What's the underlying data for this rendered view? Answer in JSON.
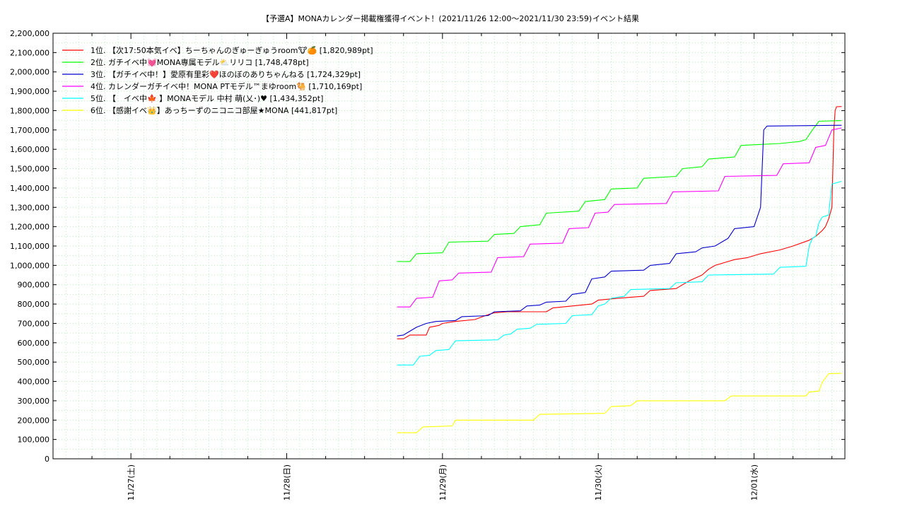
{
  "chart_data": {
    "type": "line",
    "title": "【予選A】MONAカレンダー掲載権獲得イベント！(2021/11/26 12:00〜2021/11/30 23:59)",
    "subtitle": "イベント結果",
    "xlabel": "",
    "ylabel": "",
    "ylim": [
      0,
      2200000
    ],
    "ytick_step": 100000,
    "y_ticks": [
      "0",
      "100,000",
      "200,000",
      "300,000",
      "400,000",
      "500,000",
      "600,000",
      "700,000",
      "800,000",
      "900,000",
      "1,000,000",
      "1,100,000",
      "1,200,000",
      "1,300,000",
      "1,400,000",
      "1,500,000",
      "1,600,000",
      "1,700,000",
      "1,800,000",
      "1,900,000",
      "2,000,000",
      "2,100,000",
      "2,200,000"
    ],
    "x_range_hours": [
      -12,
      110
    ],
    "x_ticks": [
      {
        "label": "11/27(土)",
        "hour": 0
      },
      {
        "label": "11/28(日)",
        "hour": 24
      },
      {
        "label": "11/29(月)",
        "hour": 48
      },
      {
        "label": "11/30(火)",
        "hour": 72
      },
      {
        "label": "12/01(水)",
        "hour": 96
      }
    ],
    "grid": true,
    "legend_position": "top-left",
    "series": [
      {
        "name": "1位. 【次17:50本気イベ】ちーちゃんのぎゅーぎゅうroom🐮🍊 [1,820,989pt]",
        "color": "#ff0000",
        "points": [
          [
            41.0,
            620000
          ],
          [
            42.0,
            620000
          ],
          [
            43.0,
            640000
          ],
          [
            45.5,
            640000
          ],
          [
            46.0,
            680000
          ],
          [
            47.5,
            690000
          ],
          [
            48.0,
            700000
          ],
          [
            50.0,
            710000
          ],
          [
            53.0,
            720000
          ],
          [
            55.0,
            745000
          ],
          [
            56.0,
            755000
          ],
          [
            58.0,
            760000
          ],
          [
            64.0,
            760000
          ],
          [
            65.0,
            780000
          ],
          [
            71.0,
            800000
          ],
          [
            72.0,
            820000
          ],
          [
            75.0,
            830000
          ],
          [
            79.0,
            840000
          ],
          [
            80.0,
            870000
          ],
          [
            84.0,
            880000
          ],
          [
            85.0,
            900000
          ],
          [
            86.0,
            920000
          ],
          [
            88.0,
            950000
          ],
          [
            89.0,
            980000
          ],
          [
            90.0,
            1000000
          ],
          [
            92.0,
            1020000
          ],
          [
            93.0,
            1030000
          ],
          [
            95.0,
            1040000
          ],
          [
            97.0,
            1060000
          ],
          [
            100.0,
            1080000
          ],
          [
            102.0,
            1100000
          ],
          [
            104.5,
            1130000
          ],
          [
            105.5,
            1150000
          ],
          [
            106.5,
            1180000
          ],
          [
            107.0,
            1200000
          ],
          [
            107.5,
            1240000
          ],
          [
            108.0,
            1300000
          ],
          [
            108.3,
            1700000
          ],
          [
            108.5,
            1800000
          ],
          [
            108.7,
            1820000
          ],
          [
            109.5,
            1820989
          ]
        ]
      },
      {
        "name": "2位. ガチイベ中💓MONA専属モデル⛅リリコ [1,748,478pt]",
        "color": "#00ff00",
        "points": [
          [
            41.0,
            1020000
          ],
          [
            43.0,
            1020000
          ],
          [
            44.0,
            1060000
          ],
          [
            48.0,
            1065000
          ],
          [
            49.0,
            1120000
          ],
          [
            55.0,
            1125000
          ],
          [
            56.0,
            1160000
          ],
          [
            59.0,
            1165000
          ],
          [
            60.0,
            1200000
          ],
          [
            63.0,
            1210000
          ],
          [
            64.0,
            1270000
          ],
          [
            69.0,
            1280000
          ],
          [
            70.0,
            1330000
          ],
          [
            73.0,
            1340000
          ],
          [
            74.0,
            1395000
          ],
          [
            78.0,
            1400000
          ],
          [
            79.0,
            1450000
          ],
          [
            84.0,
            1460000
          ],
          [
            85.0,
            1500000
          ],
          [
            88.0,
            1510000
          ],
          [
            89.0,
            1550000
          ],
          [
            93.0,
            1560000
          ],
          [
            94.0,
            1620000
          ],
          [
            97.0,
            1625000
          ],
          [
            100.0,
            1630000
          ],
          [
            103.0,
            1640000
          ],
          [
            104.0,
            1650000
          ],
          [
            105.0,
            1700000
          ],
          [
            106.0,
            1745000
          ],
          [
            109.5,
            1748478
          ]
        ]
      },
      {
        "name": "3位. 【ガチイベ中！】愛原有里彩❤️ほのぼのありちゃんねる [1,724,329pt]",
        "color": "#0000cd",
        "points": [
          [
            41.0,
            635000
          ],
          [
            42.0,
            640000
          ],
          [
            43.0,
            660000
          ],
          [
            44.0,
            680000
          ],
          [
            45.5,
            700000
          ],
          [
            47.0,
            710000
          ],
          [
            50.0,
            715000
          ],
          [
            51.0,
            735000
          ],
          [
            55.0,
            740000
          ],
          [
            56.0,
            760000
          ],
          [
            60.0,
            765000
          ],
          [
            61.0,
            790000
          ],
          [
            63.0,
            795000
          ],
          [
            64.0,
            810000
          ],
          [
            67.0,
            815000
          ],
          [
            68.0,
            850000
          ],
          [
            70.0,
            860000
          ],
          [
            71.0,
            930000
          ],
          [
            73.0,
            940000
          ],
          [
            74.0,
            970000
          ],
          [
            79.0,
            975000
          ],
          [
            80.0,
            1000000
          ],
          [
            83.0,
            1010000
          ],
          [
            84.0,
            1060000
          ],
          [
            87.0,
            1070000
          ],
          [
            88.0,
            1090000
          ],
          [
            90.0,
            1100000
          ],
          [
            91.0,
            1120000
          ],
          [
            92.0,
            1140000
          ],
          [
            93.0,
            1190000
          ],
          [
            96.0,
            1200000
          ],
          [
            97.0,
            1300000
          ],
          [
            97.5,
            1700000
          ],
          [
            98.0,
            1720000
          ],
          [
            109.5,
            1724329
          ]
        ]
      },
      {
        "name": "4位. カレンダーガチイベ中！MONA PTモデル™まゆroom🐫 [1,710,169pt]",
        "color": "#ff00ff",
        "points": [
          [
            41.0,
            785000
          ],
          [
            43.0,
            785000
          ],
          [
            44.0,
            830000
          ],
          [
            46.5,
            835000
          ],
          [
            47.5,
            920000
          ],
          [
            49.5,
            925000
          ],
          [
            50.5,
            960000
          ],
          [
            55.5,
            965000
          ],
          [
            56.5,
            1040000
          ],
          [
            60.5,
            1045000
          ],
          [
            61.5,
            1110000
          ],
          [
            66.5,
            1115000
          ],
          [
            67.5,
            1190000
          ],
          [
            70.5,
            1195000
          ],
          [
            71.5,
            1270000
          ],
          [
            73.5,
            1275000
          ],
          [
            74.5,
            1315000
          ],
          [
            82.5,
            1320000
          ],
          [
            83.5,
            1380000
          ],
          [
            90.5,
            1385000
          ],
          [
            91.5,
            1460000
          ],
          [
            99.5,
            1465000
          ],
          [
            100.5,
            1525000
          ],
          [
            104.5,
            1530000
          ],
          [
            105.5,
            1610000
          ],
          [
            107.0,
            1620000
          ],
          [
            108.0,
            1700000
          ],
          [
            109.5,
            1710169
          ]
        ]
      },
      {
        "name": "5位. 【　イベ中🍁 】MONAモデル 中村 萌(乂･)♥ [1,434,352pt]",
        "color": "#00ffff",
        "points": [
          [
            41.0,
            485000
          ],
          [
            43.5,
            485000
          ],
          [
            44.5,
            530000
          ],
          [
            46.0,
            535000
          ],
          [
            47.0,
            560000
          ],
          [
            49.0,
            565000
          ],
          [
            50.0,
            610000
          ],
          [
            56.5,
            615000
          ],
          [
            57.5,
            640000
          ],
          [
            58.5,
            645000
          ],
          [
            59.5,
            670000
          ],
          [
            61.5,
            675000
          ],
          [
            62.5,
            695000
          ],
          [
            67.0,
            700000
          ],
          [
            68.0,
            740000
          ],
          [
            71.0,
            745000
          ],
          [
            72.0,
            790000
          ],
          [
            73.0,
            800000
          ],
          [
            74.0,
            830000
          ],
          [
            76.0,
            840000
          ],
          [
            77.0,
            875000
          ],
          [
            83.0,
            880000
          ],
          [
            84.0,
            910000
          ],
          [
            88.0,
            915000
          ],
          [
            89.0,
            950000
          ],
          [
            99.0,
            955000
          ],
          [
            100.0,
            990000
          ],
          [
            104.0,
            995000
          ],
          [
            104.5,
            1100000
          ],
          [
            105.0,
            1140000
          ],
          [
            105.5,
            1150000
          ],
          [
            106.0,
            1220000
          ],
          [
            106.5,
            1250000
          ],
          [
            107.5,
            1260000
          ],
          [
            108.0,
            1420000
          ],
          [
            109.5,
            1434352
          ]
        ]
      },
      {
        "name": "6位. 【感謝イベ👑】あっちーずのニコニコ部屋★MONA [441,817pt]",
        "color": "#ffff00",
        "points": [
          [
            41.0,
            135000
          ],
          [
            44.0,
            135000
          ],
          [
            45.0,
            165000
          ],
          [
            49.5,
            170000
          ],
          [
            50.0,
            200000
          ],
          [
            62.0,
            200000
          ],
          [
            63.0,
            230000
          ],
          [
            73.0,
            235000
          ],
          [
            74.0,
            270000
          ],
          [
            77.0,
            275000
          ],
          [
            78.0,
            300000
          ],
          [
            82.0,
            300000
          ],
          [
            91.5,
            300000
          ],
          [
            92.5,
            325000
          ],
          [
            104.0,
            325000
          ],
          [
            104.5,
            345000
          ],
          [
            106.0,
            350000
          ],
          [
            106.5,
            395000
          ],
          [
            107.5,
            440000
          ],
          [
            109.5,
            441817
          ]
        ]
      }
    ]
  }
}
